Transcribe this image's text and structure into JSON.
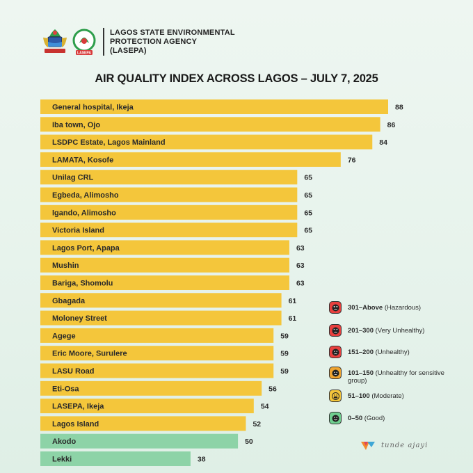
{
  "header": {
    "agency_lines": [
      "LAGOS STATE ENVIRONMENTAL",
      "PROTECTION AGENCY",
      "(LASEPA)"
    ],
    "lasepa_logo_text": "LASEPA"
  },
  "chart_data": {
    "type": "bar",
    "orientation": "horizontal",
    "title": "AIR QUALITY INDEX ACROSS LAGOS – JULY 7, 2025",
    "xlim": [
      0,
      88
    ],
    "categories": [
      "General hospital, Ikeja",
      "Iba town, Ojo",
      "LSDPC Estate, Lagos Mainland",
      "LAMATA, Kosofe",
      "Unilag CRL",
      "Egbeda, Alimosho",
      "Igando, Alimosho",
      "Victoria Island",
      "Lagos Port, Apapa",
      "Mushin",
      "Bariga, Shomolu",
      "Gbagada",
      "Moloney Street",
      "Agege",
      "Eric Moore, Surulere",
      "LASU Road",
      "Eti-Osa",
      "LASEPA, Ikeja",
      "Lagos Island",
      "Akodo",
      "Lekki"
    ],
    "values": [
      88,
      86,
      84,
      76,
      65,
      65,
      65,
      65,
      63,
      63,
      63,
      61,
      61,
      59,
      59,
      59,
      56,
      54,
      52,
      50,
      38
    ],
    "bar_colors": {
      "moderate": "#f4c63b",
      "good": "#8dd3a7"
    },
    "legend_placement": "right",
    "legend": [
      {
        "label": "301–Above",
        "note": "(Hazardous)",
        "color": "#e8403e",
        "icon": "dead-face-icon"
      },
      {
        "label": "201–300",
        "note": "(Very Unhealthy)",
        "color": "#e8403e",
        "icon": "angry-face-icon"
      },
      {
        "label": "151–200",
        "note": "(Unhealthy)",
        "color": "#e8403e",
        "icon": "sad-face-icon"
      },
      {
        "label": "101–150",
        "note": "(Unhealthy for sensitive group)",
        "color": "#f0a531",
        "icon": "worried-face-icon"
      },
      {
        "label": "51–100",
        "note": "(Moderate)",
        "color": "#f4c63b",
        "icon": "face-mask-icon"
      },
      {
        "label": "0–50",
        "note": "(Good)",
        "color": "#6fce8f",
        "icon": "smile-face-icon"
      }
    ]
  },
  "watermark": {
    "text": "tunde ajayi"
  }
}
